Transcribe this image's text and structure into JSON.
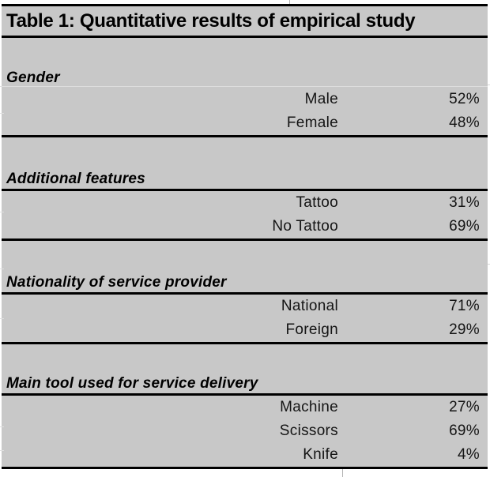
{
  "title": "Table 1: Quantitative results of empirical study",
  "colors": {
    "table_fill": "#c8c8c8",
    "border": "#000000",
    "text": "#141414",
    "gridline": "#dedede",
    "page_background": "#ffffff"
  },
  "sections": [
    {
      "header": "Gender",
      "header_underline": false,
      "rows": [
        {
          "label": "Male",
          "value": "52%"
        },
        {
          "label": "Female",
          "value": "48%"
        }
      ]
    },
    {
      "header": "Additional features",
      "header_underline": true,
      "rows": [
        {
          "label": "Tattoo",
          "value": "31%"
        },
        {
          "label": "No Tattoo",
          "value": "69%"
        }
      ]
    },
    {
      "header": "Nationality of service provider",
      "header_underline": true,
      "rows": [
        {
          "label": "National",
          "value": "71%"
        },
        {
          "label": "Foreign",
          "value": "29%"
        }
      ]
    },
    {
      "header": "Main tool used for service delivery",
      "header_underline": true,
      "rows": [
        {
          "label": "Machine",
          "value": "27%"
        },
        {
          "label": "Scissors",
          "value": "69%"
        },
        {
          "label": "Knife",
          "value": "4%"
        }
      ]
    }
  ]
}
